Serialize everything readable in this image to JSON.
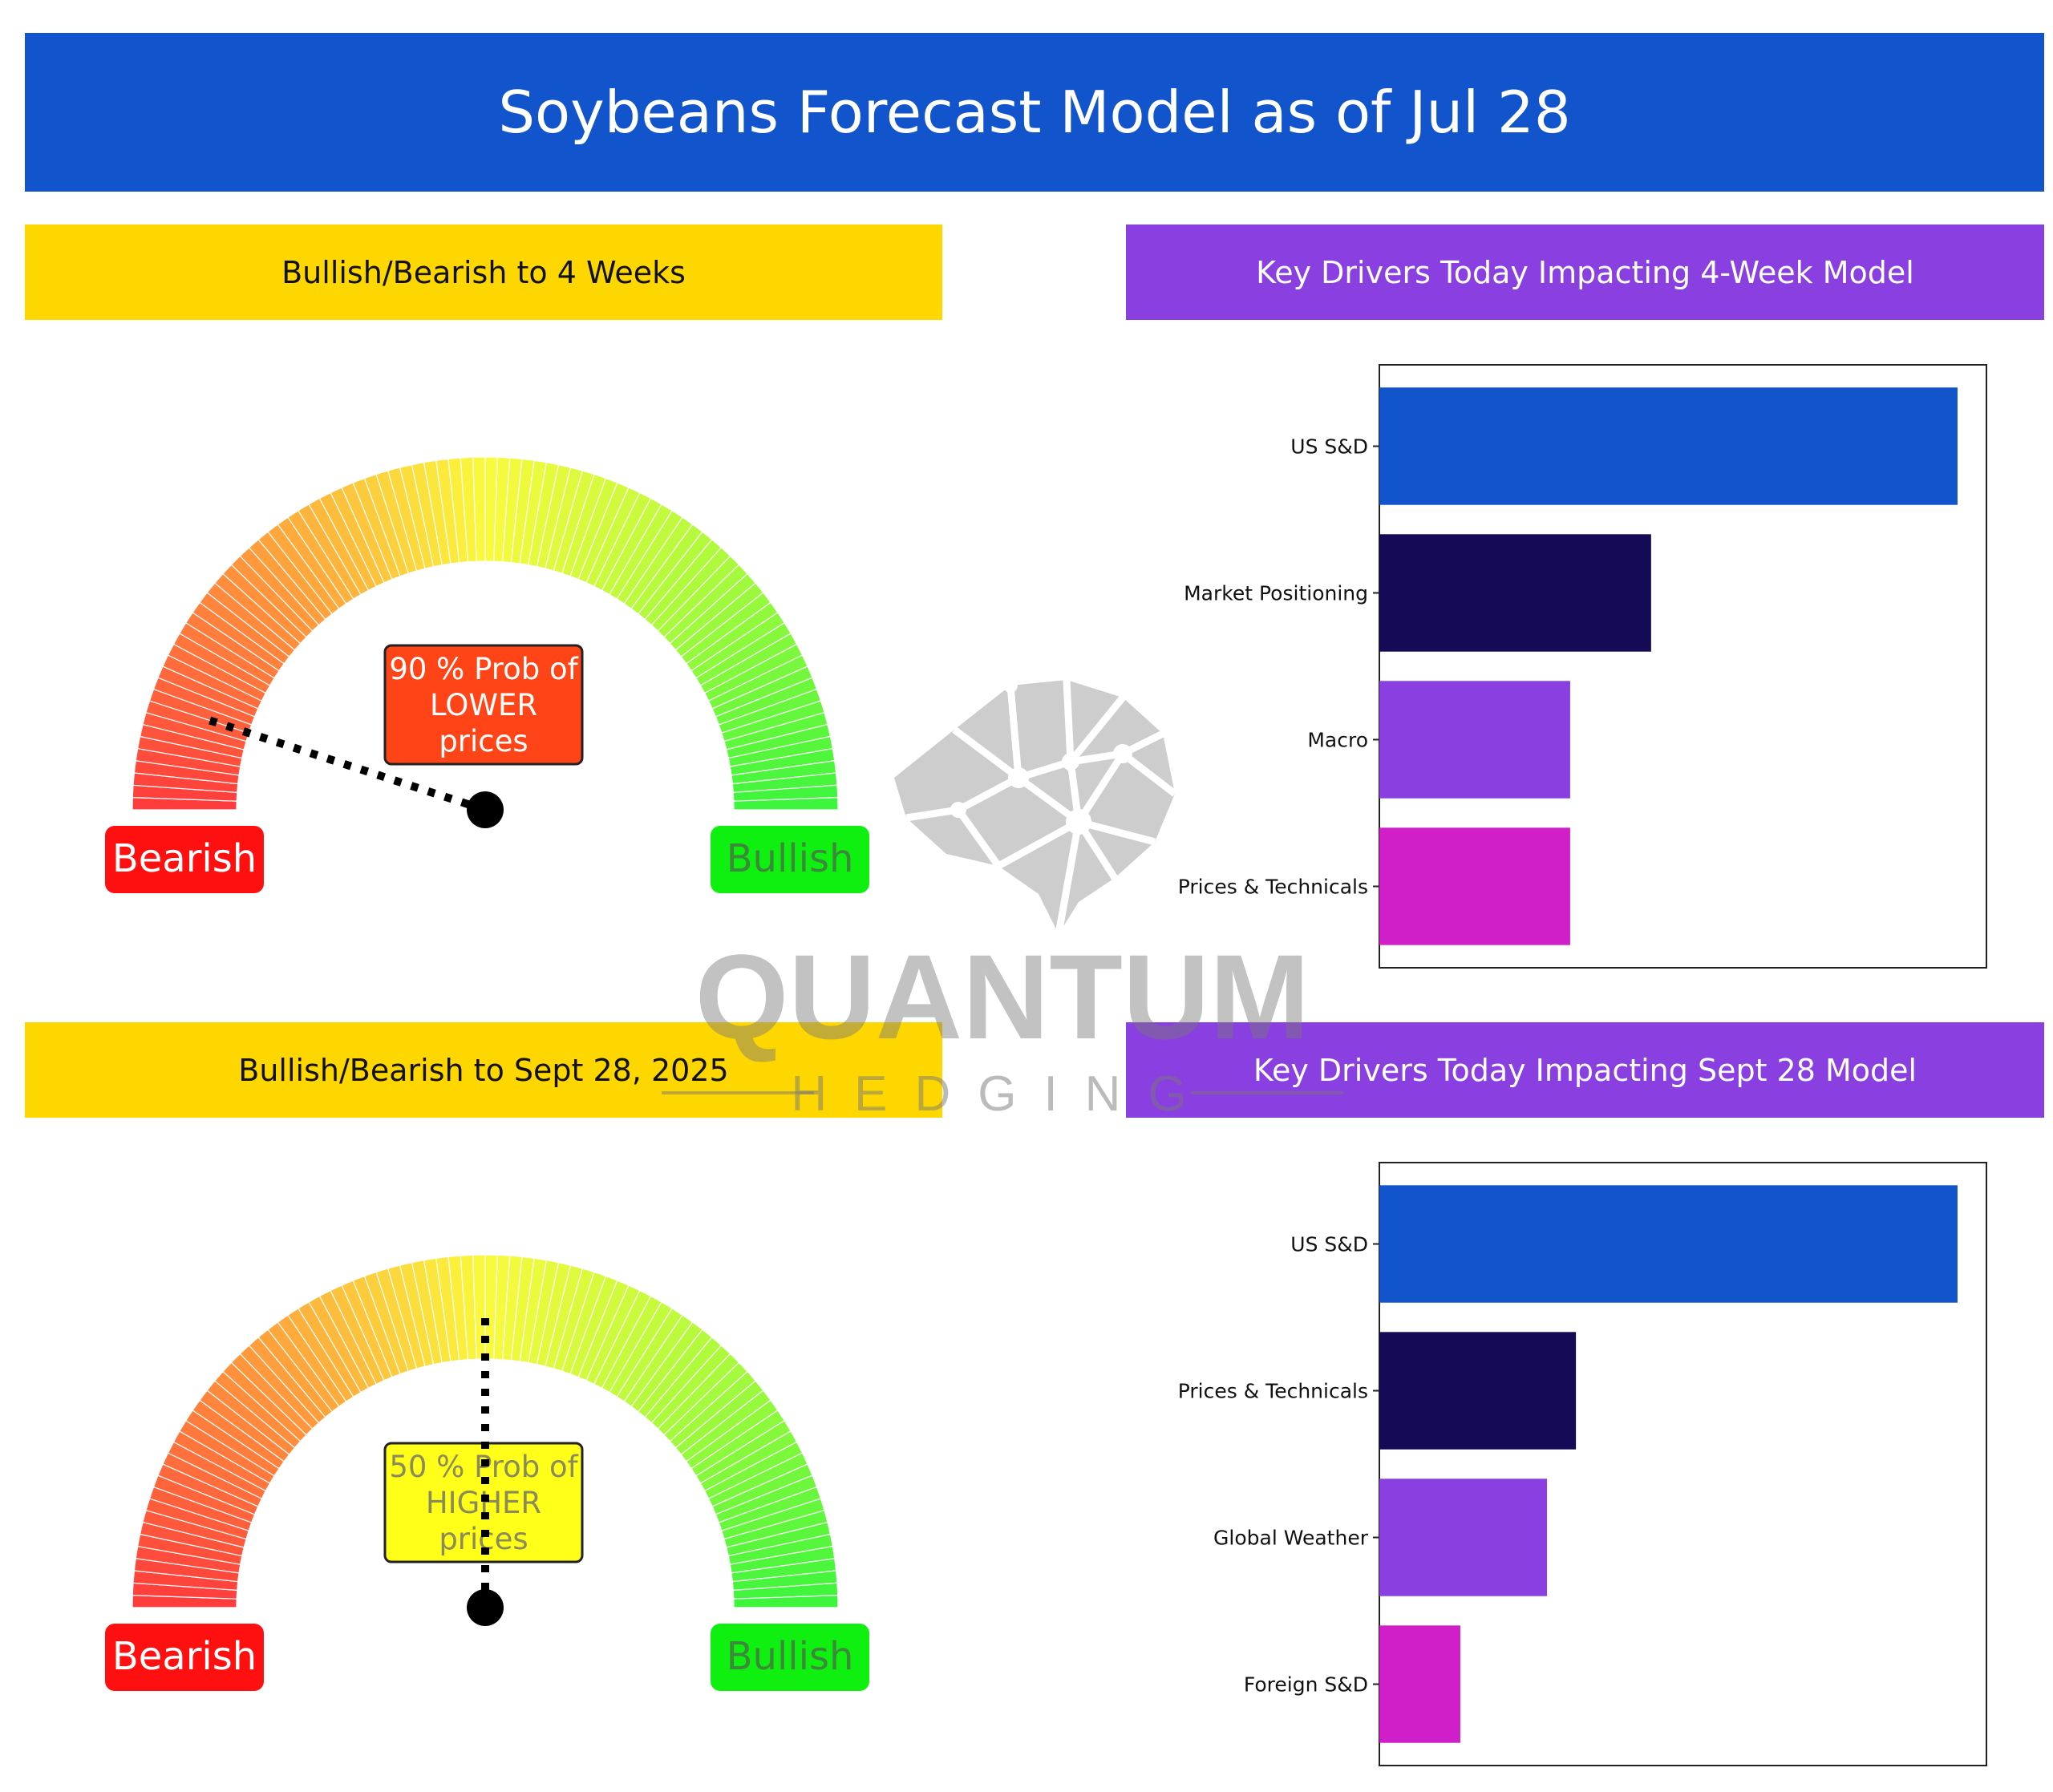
{
  "title": "Soybeans Forecast Model as of Jul 28",
  "colors": {
    "banner": "#1254CC",
    "yellow_header": "#FFD700",
    "purple_header": "#8A3FE0",
    "bearish": "#FF1010",
    "bullish": "#10F010",
    "bar_palette": [
      "#1254CC",
      "#140A55",
      "#8A3FE0",
      "#D01FC8"
    ]
  },
  "sections": {
    "gauge_4w_header": "Bullish/Bearish to 4 Weeks",
    "drivers_4w_header": "Key Drivers Today Impacting 4-Week Model",
    "gauge_sept_header": "Bullish/Bearish to Sept 28, 2025",
    "drivers_sept_header": "Key Drivers Today Impacting Sept 28 Model"
  },
  "gauges": [
    {
      "probability_pct": 90,
      "direction": "LOWER",
      "needle_fraction": 0.1,
      "label_lines": [
        "90 % Prob of",
        "LOWER",
        "prices"
      ],
      "badge_color": "#FF4518",
      "left_label": "Bearish",
      "right_label": "Bullish"
    },
    {
      "probability_pct": 50,
      "direction": "HIGHER",
      "needle_fraction": 0.5,
      "label_lines": [
        "50 % Prob of",
        "HIGHER",
        "prices"
      ],
      "badge_color": "#FFFF1A",
      "left_label": "Bearish",
      "right_label": "Bullish"
    }
  ],
  "chart_data": [
    {
      "type": "bar",
      "orientation": "horizontal",
      "categories": [
        "US S&D",
        "Market Positioning",
        "Macro",
        "Prices & Technicals"
      ],
      "values": [
        1.0,
        0.47,
        0.33,
        0.33
      ],
      "xlim": [
        0,
        1.05
      ],
      "title": "",
      "xlabel": "",
      "ylabel": ""
    },
    {
      "type": "bar",
      "orientation": "horizontal",
      "categories": [
        "US S&D",
        "Prices & Technicals",
        "Global Weather",
        "Foreign S&D"
      ],
      "values": [
        1.0,
        0.34,
        0.29,
        0.14
      ],
      "xlim": [
        0,
        1.05
      ],
      "title": "",
      "xlabel": "",
      "ylabel": ""
    }
  ],
  "watermark": {
    "word": "QUANTUM",
    "sub": "HEDGING"
  }
}
